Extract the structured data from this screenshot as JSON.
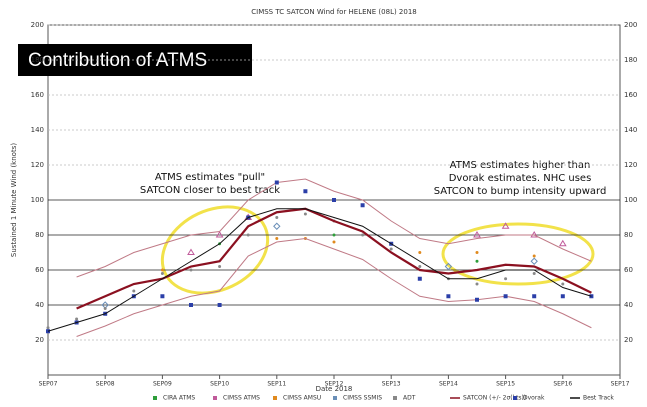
{
  "chart_data": {
    "type": "line",
    "title": "CIMSS TC SATCON Wind for HELENE (08L) 2018",
    "y_label": "Sustained 1 Minute Wind (knots)",
    "x_label": "Date 2018",
    "badge": "Contribution of ATMS",
    "annotations": [
      "ATMS estimates \"pull\"",
      "SATCON closer to best track",
      "ATMS estimates higher than",
      "Dvorak estimates.  NHC uses",
      "SATCON to bump intensity upward"
    ],
    "x": [
      7,
      7.5,
      8,
      8.5,
      9,
      9.5,
      10,
      10.5,
      11,
      11.5,
      12,
      12.5,
      13,
      13.5,
      14,
      14.5,
      15,
      15.5,
      16,
      16.5
    ],
    "xlim": [
      7,
      17
    ],
    "xticks": [
      {
        "value": 7,
        "label": "SEP07"
      },
      {
        "value": 8,
        "label": "SEP08"
      },
      {
        "value": 9,
        "label": "SEP09"
      },
      {
        "value": 10,
        "label": "SEP10"
      },
      {
        "value": 11,
        "label": "SEP11"
      },
      {
        "value": 12,
        "label": "SEP12"
      },
      {
        "value": 13,
        "label": "SEP13"
      },
      {
        "value": 14,
        "label": "SEP14"
      },
      {
        "value": 15,
        "label": "SEP15"
      },
      {
        "value": 16,
        "label": "SEP16"
      },
      {
        "value": 17,
        "label": "SEP17"
      }
    ],
    "ylim": [
      0,
      200
    ],
    "yticks": [
      20,
      40,
      60,
      80,
      100,
      120,
      140,
      160,
      180,
      200
    ],
    "grid": true,
    "series": [
      {
        "name": "CIRA ATMS",
        "color": "#2e9e3a",
        "marker": "dot",
        "values": [
          null,
          null,
          null,
          null,
          null,
          null,
          75,
          null,
          null,
          null,
          80,
          null,
          null,
          null,
          null,
          65,
          null,
          null,
          null,
          null
        ]
      },
      {
        "name": "CIMSS ATMS",
        "color": "#c05a9a",
        "marker": "triangle",
        "values": [
          null,
          null,
          null,
          null,
          null,
          70,
          80,
          90,
          null,
          null,
          null,
          null,
          null,
          null,
          null,
          80,
          85,
          80,
          75,
          null
        ]
      },
      {
        "name": "CIMSS AMSU",
        "color": "#e08a1e",
        "marker": "dot",
        "values": [
          null,
          null,
          null,
          null,
          60,
          null,
          null,
          null,
          78,
          78,
          76,
          null,
          null,
          70,
          null,
          70,
          null,
          68,
          null,
          null
        ]
      },
      {
        "name": "CIMSS SSMIS",
        "color": "#6a8fb8",
        "marker": "diamond",
        "values": [
          null,
          null,
          40,
          null,
          null,
          null,
          null,
          null,
          85,
          null,
          null,
          null,
          null,
          null,
          62,
          null,
          null,
          65,
          null,
          null
        ]
      },
      {
        "name": "ADT",
        "color": "#888888",
        "marker": "dot",
        "values": [
          27,
          32,
          38,
          48,
          58,
          60,
          62,
          80,
          90,
          92,
          88,
          80,
          72,
          62,
          55,
          52,
          55,
          58,
          52,
          45
        ]
      },
      {
        "name": "SATCON (+/- 2σ(kts))",
        "color": "#8b1020",
        "bound_color": "#c07a86",
        "marker": "line",
        "values": [
          null,
          38,
          45,
          52,
          55,
          62,
          65,
          85,
          93,
          95,
          88,
          82,
          70,
          60,
          58,
          60,
          63,
          62,
          55,
          47
        ],
        "upper": [
          null,
          56,
          62,
          70,
          75,
          80,
          82,
          100,
          110,
          112,
          105,
          100,
          88,
          78,
          75,
          78,
          80,
          80,
          72,
          65
        ],
        "lower": [
          null,
          22,
          28,
          35,
          40,
          45,
          48,
          68,
          76,
          78,
          72,
          66,
          55,
          45,
          42,
          43,
          45,
          42,
          35,
          27
        ]
      },
      {
        "name": "Dvorak",
        "color": "#2b3fa8",
        "marker": "square",
        "values": [
          25,
          30,
          35,
          45,
          45,
          40,
          40,
          90,
          110,
          105,
          100,
          97,
          75,
          55,
          45,
          43,
          45,
          45,
          45,
          45
        ]
      },
      {
        "name": "Best Track",
        "color": "#111111",
        "marker": "line",
        "values": [
          25,
          30,
          35,
          45,
          55,
          65,
          75,
          90,
          95,
          95,
          90,
          85,
          75,
          65,
          55,
          55,
          60,
          60,
          50,
          45
        ]
      }
    ]
  }
}
